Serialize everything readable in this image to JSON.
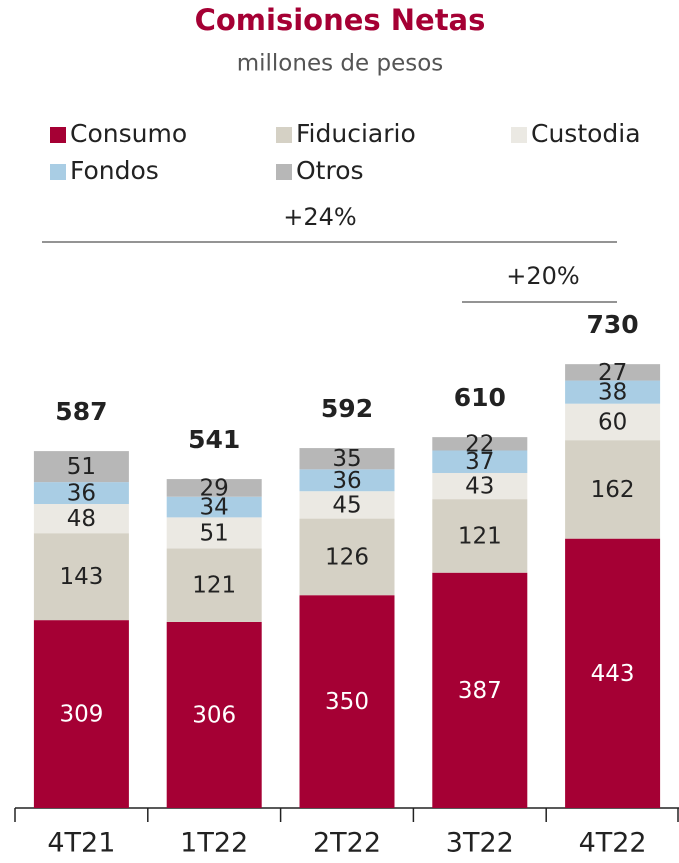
{
  "chart_data": {
    "type": "stacked_bar",
    "title": "Comisiones Netas",
    "subtitle": "millones de pesos",
    "categories": [
      "4T21",
      "1T22",
      "2T22",
      "3T22",
      "4T22"
    ],
    "series": [
      {
        "name": "Consumo",
        "color": "#a50034",
        "values": [
          309,
          306,
          350,
          387,
          443
        ]
      },
      {
        "name": "Fiduciario",
        "color": "#d5d1c5",
        "values": [
          143,
          121,
          126,
          121,
          162
        ]
      },
      {
        "name": "Custodia",
        "color": "#ebe9e3",
        "values": [
          48,
          51,
          45,
          43,
          60
        ]
      },
      {
        "name": "Fondos",
        "color": "#a9cde4",
        "values": [
          36,
          34,
          36,
          37,
          38
        ]
      },
      {
        "name": "Otros",
        "color": "#b7b7b7",
        "values": [
          51,
          29,
          35,
          22,
          27
        ]
      }
    ],
    "totals": [
      587,
      541,
      592,
      610,
      730
    ],
    "annotations": [
      "+24%",
      "+20%"
    ],
    "ylim": [
      0,
      800
    ]
  }
}
